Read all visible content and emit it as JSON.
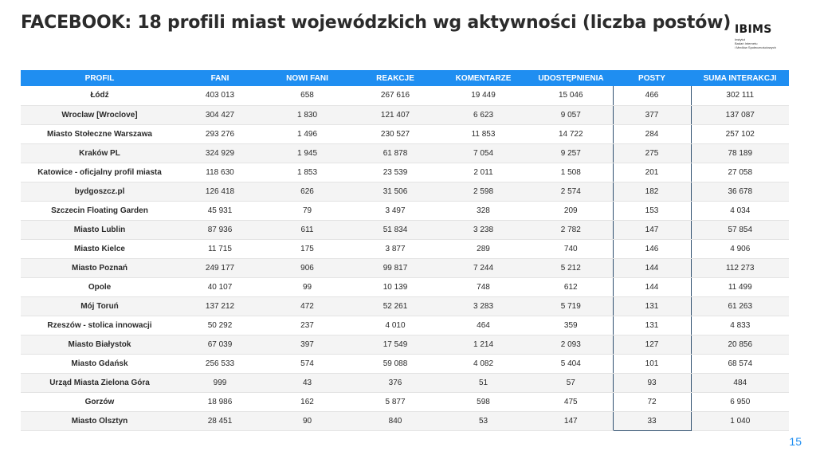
{
  "title": "FACEBOOK: 18 profili miast wojewódzkich wg aktywności (liczba postów)",
  "logo": {
    "mark": "IBIMS",
    "lines": [
      "Instytut",
      "Badań Internetu",
      "i Mediów Społecznościowych"
    ]
  },
  "table": {
    "columns": [
      "PROFIL",
      "FANI",
      "NOWI FANI",
      "REAKCJE",
      "KOMENTARZE",
      "UDOSTĘPNIENIA",
      "POSTY",
      "SUMA INTERAKCJI"
    ],
    "rows": [
      [
        "Łódź",
        "403 013",
        "658",
        "267 616",
        "19 449",
        "15 046",
        "466",
        "302 111"
      ],
      [
        "Wroclaw [Wroclove]",
        "304 427",
        "1 830",
        "121 407",
        "6 623",
        "9 057",
        "377",
        "137 087"
      ],
      [
        "Miasto Stołeczne Warszawa",
        "293 276",
        "1 496",
        "230 527",
        "11 853",
        "14 722",
        "284",
        "257 102"
      ],
      [
        "Kraków PL",
        "324 929",
        "1 945",
        "61 878",
        "7 054",
        "9 257",
        "275",
        "78 189"
      ],
      [
        "Katowice - oficjalny profil miasta",
        "118 630",
        "1 853",
        "23 539",
        "2 011",
        "1 508",
        "201",
        "27 058"
      ],
      [
        "bydgoszcz.pl",
        "126 418",
        "626",
        "31 506",
        "2 598",
        "2 574",
        "182",
        "36 678"
      ],
      [
        "Szczecin Floating Garden",
        "45 931",
        "79",
        "3 497",
        "328",
        "209",
        "153",
        "4 034"
      ],
      [
        "Miasto Lublin",
        "87 936",
        "611",
        "51 834",
        "3 238",
        "2 782",
        "147",
        "57 854"
      ],
      [
        "Miasto Kielce",
        "11 715",
        "175",
        "3 877",
        "289",
        "740",
        "146",
        "4 906"
      ],
      [
        "Miasto Poznań",
        "249 177",
        "906",
        "99 817",
        "7 244",
        "5 212",
        "144",
        "112 273"
      ],
      [
        "Opole",
        "40 107",
        "99",
        "10 139",
        "748",
        "612",
        "144",
        "11 499"
      ],
      [
        "Mój Toruń",
        "137 212",
        "472",
        "52 261",
        "3 283",
        "5 719",
        "131",
        "61 263"
      ],
      [
        "Rzeszów - stolica innowacji",
        "50 292",
        "237",
        "4 010",
        "464",
        "359",
        "131",
        "4 833"
      ],
      [
        "Miasto Białystok",
        "67 039",
        "397",
        "17 549",
        "1 214",
        "2 093",
        "127",
        "20 856"
      ],
      [
        "Miasto Gdańsk",
        "256 533",
        "574",
        "59 088",
        "4 082",
        "5 404",
        "101",
        "68 574"
      ],
      [
        "Urząd Miasta Zielona Góra",
        "999",
        "43",
        "376",
        "51",
        "57",
        "93",
        "484"
      ],
      [
        "Gorzów",
        "18 986",
        "162",
        "5 877",
        "598",
        "475",
        "72",
        "6 950"
      ],
      [
        "Miasto Olsztyn",
        "28 451",
        "90",
        "840",
        "53",
        "147",
        "33",
        "1 040"
      ]
    ]
  },
  "highlighted_column": "POSTY",
  "page_number": "15",
  "colors": {
    "header_bg": "#1f8ef1",
    "highlight_border": "#2f4f6f",
    "page_number": "#1f8ef1"
  }
}
